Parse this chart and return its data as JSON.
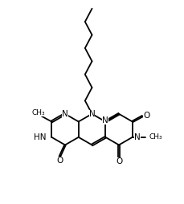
{
  "bg_color": "#ffffff",
  "line_color": "#000000",
  "line_width": 1.3,
  "font_size": 7.5,
  "figsize": [
    2.29,
    2.54
  ],
  "dpi": 100,
  "xlim": [
    0,
    10
  ],
  "ylim": [
    0,
    11
  ]
}
